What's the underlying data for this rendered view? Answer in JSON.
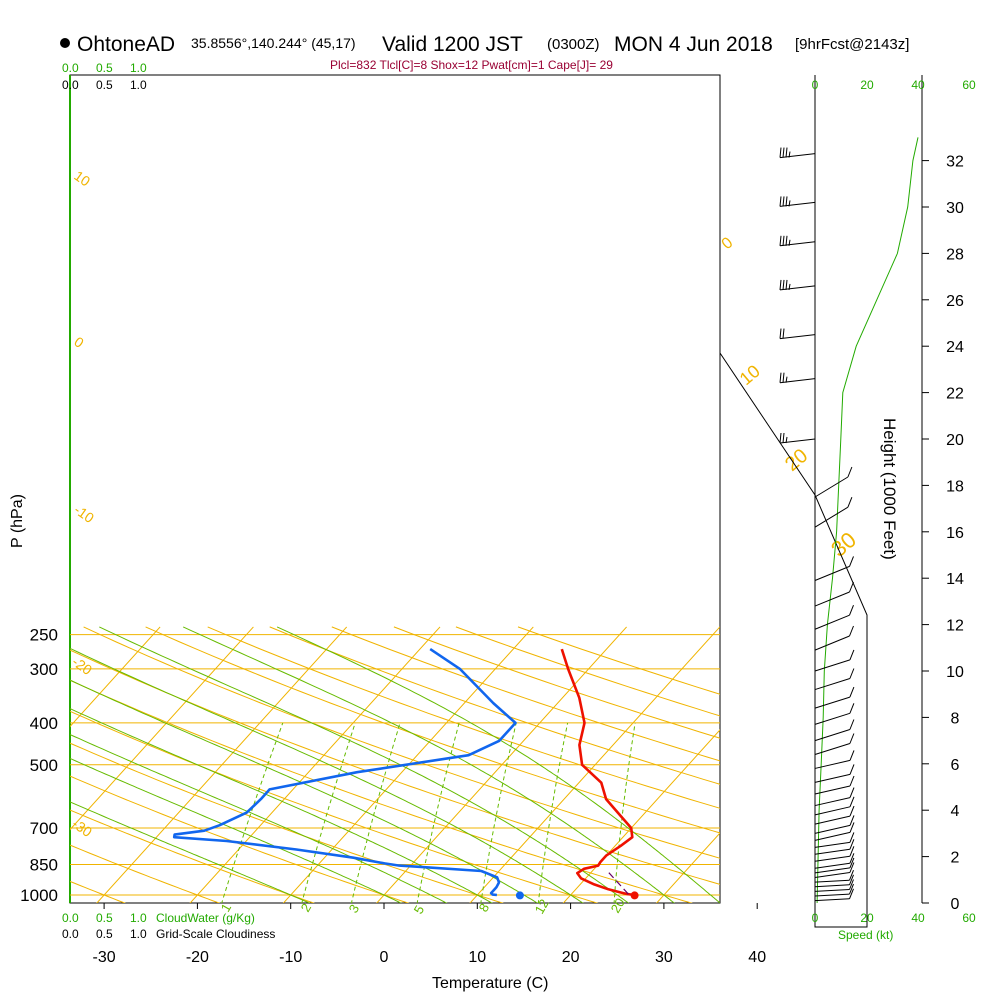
{
  "header": {
    "station": "OhtoneAD",
    "coords": "35.8556°,140.244° (45,17)",
    "valid": "Valid 1200 JST",
    "utc": "(0300Z)",
    "date": "MON 4 Jun 2018",
    "fcst": "[9hrFcst@2143z]",
    "indices": "Plcl=832 Tlcl[C]=8 Shox=12 Pwat[cm]=1 Cape[J]= 29"
  },
  "colors": {
    "isotherm": "#f0b400",
    "mixing_ratio": "#66bb00",
    "cloudwater": "#22aa00",
    "temperature": "#ee1100",
    "dewpoint": "#1166ee",
    "parcel": "#660066",
    "index_text": "#990033"
  },
  "chart_data": {
    "type": "line",
    "title": "OhtoneAD Valid 1200 JST (0300Z) MON 4 Jun 2018",
    "xlabel": "Temperature (C)",
    "ylabel": "P (hPa)",
    "y2label": "Height (1000 Feet)",
    "x_ticks": [
      -30,
      -20,
      -10,
      0,
      10,
      20,
      30,
      40
    ],
    "p_ticks": [
      250,
      300,
      400,
      500,
      700,
      850,
      1000
    ],
    "height_ticks": [
      0,
      2,
      4,
      6,
      8,
      10,
      12,
      14,
      16,
      18,
      20,
      22,
      24,
      26,
      28,
      30,
      32
    ],
    "dry_adiabat_labels": [
      "10",
      "0",
      "-10",
      "-20",
      "-30"
    ],
    "moist_adiabat_labels": [
      "0",
      "10",
      "20",
      "30"
    ],
    "mixing_ratio_labels": [
      "1",
      "2",
      "3",
      "5",
      "8",
      "12",
      "20"
    ],
    "cloud_scale_labels": [
      "0.0",
      "0.5",
      "1.0"
    ],
    "cloudwater_label": "CloudWater (g/Kg)",
    "cloudiness_label": "Grid-Scale Cloudiness",
    "wind_speed_ticks": [
      "0",
      "20",
      "40",
      "60"
    ],
    "wind_speed_label": "Speed (kt)",
    "series": [
      {
        "name": "Temperature",
        "points": [
          [
            26.9,
            1000
          ],
          [
            26.0,
            995
          ],
          [
            25.0,
            985
          ],
          [
            23.5,
            970
          ],
          [
            21.5,
            945
          ],
          [
            19.5,
            915
          ],
          [
            18.6,
            890
          ],
          [
            18.9,
            870
          ],
          [
            20.1,
            855
          ],
          [
            20.0,
            840
          ],
          [
            20.0,
            810
          ],
          [
            20.6,
            770
          ],
          [
            21.0,
            735
          ],
          [
            20.0,
            700
          ],
          [
            17.9,
            660
          ],
          [
            14.5,
            600
          ],
          [
            12.4,
            550
          ],
          [
            8.6,
            500
          ],
          [
            6.4,
            450
          ],
          [
            4.8,
            400
          ],
          [
            1.8,
            350
          ],
          [
            -2.2,
            300
          ],
          [
            -4.8,
            270
          ]
        ]
      },
      {
        "name": "Dewpoint",
        "points": [
          [
            12.1,
            1000
          ],
          [
            11.6,
            998
          ],
          [
            11.3,
            990
          ],
          [
            11.3,
            960
          ],
          [
            11.1,
            935
          ],
          [
            10.4,
            910
          ],
          [
            8.1,
            880
          ],
          [
            0.8,
            860
          ],
          [
            -1.2,
            855
          ],
          [
            -3.0,
            845
          ],
          [
            -6.9,
            820
          ],
          [
            -13.8,
            785
          ],
          [
            -22.1,
            750
          ],
          [
            -28.1,
            735
          ],
          [
            -28.3,
            725
          ],
          [
            -25.5,
            710
          ],
          [
            -24.4,
            690
          ],
          [
            -22.7,
            645
          ],
          [
            -22.5,
            600
          ],
          [
            -22.5,
            570
          ],
          [
            -14.8,
            520
          ],
          [
            -4.5,
            475
          ],
          [
            -2.6,
            440
          ],
          [
            -2.6,
            400
          ],
          [
            -6.9,
            360
          ],
          [
            -13.8,
            300
          ],
          [
            -18.9,
            270
          ]
        ]
      },
      {
        "name": "Parcel",
        "points": [
          [
            26.1,
            995
          ],
          [
            21.6,
            880
          ]
        ]
      }
    ],
    "surface_points": [
      {
        "name": "surface temperature",
        "t": 26.9,
        "p": 1002
      },
      {
        "name": "surface dewpoint",
        "t": 14.6,
        "p": 1002
      }
    ],
    "height_profile_kft": [
      0,
      3,
      6,
      9,
      12,
      15,
      18,
      21,
      24,
      27,
      30,
      32
    ],
    "cloudwater_profile": [
      [
        0.02,
        0.0
      ],
      [
        0.03,
        2.0
      ],
      [
        0.04,
        4.0
      ],
      [
        0.06,
        6.0
      ],
      [
        0.08,
        8.0
      ],
      [
        0.09,
        10.0
      ],
      [
        0.12,
        12.0
      ],
      [
        0.17,
        14.0
      ],
      [
        0.21,
        16.0
      ],
      [
        0.23,
        18.0
      ],
      [
        0.25,
        20.0
      ],
      [
        0.27,
        22.0
      ],
      [
        0.4,
        24.0
      ],
      [
        0.6,
        26.0
      ],
      [
        0.8,
        28.0
      ],
      [
        0.9,
        30.0
      ],
      [
        0.95,
        32.0
      ],
      [
        1.0,
        33.0
      ]
    ],
    "wind_barbs": [
      {
        "h": 0.1,
        "spd": 10,
        "dir": 100
      },
      {
        "h": 0.3,
        "spd": 10,
        "dir": 100
      },
      {
        "h": 0.5,
        "spd": 10,
        "dir": 100
      },
      {
        "h": 0.7,
        "spd": 10,
        "dir": 100
      },
      {
        "h": 0.9,
        "spd": 10,
        "dir": 100
      },
      {
        "h": 1.1,
        "spd": 10,
        "dir": 95
      },
      {
        "h": 1.3,
        "spd": 10,
        "dir": 95
      },
      {
        "h": 1.5,
        "spd": 10,
        "dir": 95
      },
      {
        "h": 1.8,
        "spd": 10,
        "dir": 95
      },
      {
        "h": 2.1,
        "spd": 10,
        "dir": 95
      },
      {
        "h": 2.4,
        "spd": 10,
        "dir": 95
      },
      {
        "h": 2.7,
        "spd": 10,
        "dir": 90
      },
      {
        "h": 3.0,
        "spd": 10,
        "dir": 90
      },
      {
        "h": 3.4,
        "spd": 10,
        "dir": 90
      },
      {
        "h": 3.8,
        "spd": 10,
        "dir": 90
      },
      {
        "h": 4.2,
        "spd": 10,
        "dir": 90
      },
      {
        "h": 4.7,
        "spd": 10,
        "dir": 90
      },
      {
        "h": 5.2,
        "spd": 10,
        "dir": 90
      },
      {
        "h": 5.8,
        "spd": 10,
        "dir": 90
      },
      {
        "h": 6.4,
        "spd": 10,
        "dir": 85
      },
      {
        "h": 7.0,
        "spd": 10,
        "dir": 85
      },
      {
        "h": 7.7,
        "spd": 10,
        "dir": 85
      },
      {
        "h": 8.4,
        "spd": 10,
        "dir": 85
      },
      {
        "h": 9.2,
        "spd": 10,
        "dir": 85
      },
      {
        "h": 10.0,
        "spd": 10,
        "dir": 85
      },
      {
        "h": 10.9,
        "spd": 10,
        "dir": 80
      },
      {
        "h": 11.8,
        "spd": 10,
        "dir": 80
      },
      {
        "h": 12.8,
        "spd": 10,
        "dir": 80
      },
      {
        "h": 13.9,
        "spd": 10,
        "dir": 80
      },
      {
        "h": 16.2,
        "spd": 10,
        "dir": 70
      },
      {
        "h": 17.5,
        "spd": 10,
        "dir": 70
      },
      {
        "h": 20.0,
        "spd": 15,
        "dir": 270
      },
      {
        "h": 22.6,
        "spd": 15,
        "dir": 270
      },
      {
        "h": 24.5,
        "spd": 20,
        "dir": 270
      },
      {
        "h": 26.6,
        "spd": 25,
        "dir": 270
      },
      {
        "h": 28.5,
        "spd": 25,
        "dir": 270
      },
      {
        "h": 30.2,
        "spd": 25,
        "dir": 270
      },
      {
        "h": 32.3,
        "spd": 25,
        "dir": 270
      }
    ]
  }
}
